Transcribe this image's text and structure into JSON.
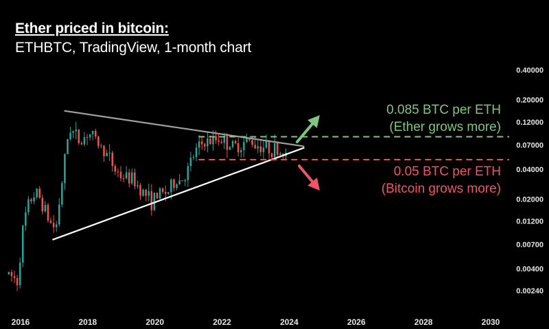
{
  "header": {
    "title": "Ether priced in bitcoin:",
    "subtitle": "ETHBTC, TradingView, 1-month chart"
  },
  "annotations": {
    "up_price": "0.085 BTC per ETH",
    "up_note": "(Ether grows more)",
    "down_price": "0.05 BTC per ETH",
    "down_note": "(Bitcoin grows more)"
  },
  "colors": {
    "background": "#000000",
    "up_candle": "#26a69a",
    "down_candle": "#ef5350",
    "up_text": "#7fc77f",
    "down_text": "#f05566",
    "triangle_upper": "#a0a0a0",
    "triangle_lower": "#ffffff"
  },
  "chart_data": {
    "type": "candlestick",
    "title": "Ether priced in bitcoin:",
    "subtitle": "ETHBTC, TradingView, 1-month chart",
    "y_scale": "log",
    "ylim": [
      0.0018,
      0.6
    ],
    "y_ticks": [
      0.4,
      0.2,
      0.12,
      0.07,
      0.04,
      0.02,
      0.012,
      0.007,
      0.004,
      0.0024
    ],
    "y_tick_labels": [
      "0.40000",
      "0.20000",
      "0.12000",
      "0.07000",
      "0.04000",
      "0.02000",
      "0.01200",
      "0.00700",
      "0.00400",
      "0.00240"
    ],
    "x_ticks": [
      "2016",
      "2018",
      "2020",
      "2022",
      "2024",
      "2026",
      "2028",
      "2030"
    ],
    "xlim": [
      2015.6,
      2030.6
    ],
    "close_path": [
      [
        2015.65,
        0.0035
      ],
      [
        2015.9,
        0.003
      ],
      [
        2016.1,
        0.012
      ],
      [
        2016.3,
        0.02
      ],
      [
        2016.45,
        0.023
      ],
      [
        2016.6,
        0.02
      ],
      [
        2016.85,
        0.012
      ],
      [
        2017.05,
        0.01
      ],
      [
        2017.2,
        0.025
      ],
      [
        2017.35,
        0.06
      ],
      [
        2017.45,
        0.11
      ],
      [
        2017.6,
        0.09
      ],
      [
        2017.8,
        0.075
      ],
      [
        2018.0,
        0.095
      ],
      [
        2018.15,
        0.085
      ],
      [
        2018.35,
        0.07
      ],
      [
        2018.6,
        0.055
      ],
      [
        2018.8,
        0.04
      ],
      [
        2019.0,
        0.034
      ],
      [
        2019.3,
        0.032
      ],
      [
        2019.6,
        0.025
      ],
      [
        2019.9,
        0.019
      ],
      [
        2020.1,
        0.022
      ],
      [
        2020.4,
        0.024
      ],
      [
        2020.6,
        0.03
      ],
      [
        2020.85,
        0.032
      ],
      [
        2021.0,
        0.04
      ],
      [
        2021.2,
        0.06
      ],
      [
        2021.45,
        0.075
      ],
      [
        2021.7,
        0.075
      ],
      [
        2021.9,
        0.083
      ],
      [
        2022.1,
        0.075
      ],
      [
        2022.35,
        0.066
      ],
      [
        2022.6,
        0.072
      ],
      [
        2022.8,
        0.078
      ],
      [
        2023.0,
        0.071
      ],
      [
        2023.3,
        0.067
      ],
      [
        2023.6,
        0.062
      ],
      [
        2023.8,
        0.058
      ],
      [
        2023.95,
        0.052
      ]
    ],
    "triangle": {
      "upper": [
        [
          2017.3,
          0.155
        ],
        [
          2024.45,
          0.068
        ]
      ],
      "lower": [
        [
          2016.95,
          0.0078
        ],
        [
          2024.45,
          0.066
        ]
      ]
    },
    "levels": [
      {
        "value": 0.085,
        "color": "#7fc77f",
        "style": "dashed",
        "x_start": 2021.3
      },
      {
        "value": 0.05,
        "color": "#f05566",
        "style": "dashed",
        "x_start": 2021.3
      }
    ],
    "arrows": [
      {
        "direction": "up",
        "color": "#7fc77f"
      },
      {
        "direction": "down",
        "color": "#f05566"
      }
    ],
    "grid": false
  }
}
